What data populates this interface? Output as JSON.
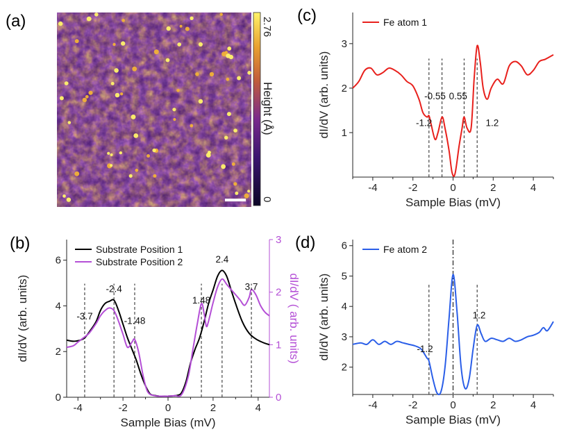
{
  "panel_labels": [
    "(a)",
    "(b)",
    "(c)",
    "(d)"
  ],
  "image_panel": {
    "colorbar_max": "2.76",
    "colorbar_min": "0",
    "colorbar_label": "Height (Å)",
    "colors": [
      "#0c0626",
      "#3b1570",
      "#7a2a8c",
      "#c25d3a",
      "#e8a030",
      "#fff36a"
    ]
  },
  "chart_data": [
    {
      "id": "b",
      "type": "line",
      "xlabel": "Sample Bias (mV)",
      "ylabel": "dI/dV (arb. units)",
      "ylabel_right": "dI/dV ( arb. units)",
      "xlim": [
        -4.5,
        4.5
      ],
      "ylim": [
        0,
        6.9
      ],
      "ylim_right": [
        0,
        3
      ],
      "xticks": [
        -4,
        -2,
        0,
        2,
        4
      ],
      "yticks": [
        0,
        2,
        4,
        6
      ],
      "yticks_right": [
        0,
        1,
        2,
        3
      ],
      "legend_position": "top-left",
      "series": [
        {
          "name": "Substrate Position 1",
          "color": "#000000",
          "axis": "left",
          "x": [
            -4.5,
            -4.2,
            -3.9,
            -3.7,
            -3.5,
            -3.2,
            -3.0,
            -2.8,
            -2.6,
            -2.4,
            -2.2,
            -2.0,
            -1.8,
            -1.6,
            -1.4,
            -1.2,
            -1.0,
            -0.8,
            -0.6,
            -0.4,
            0,
            0.4,
            0.6,
            0.8,
            1.0,
            1.2,
            1.4,
            1.6,
            1.8,
            2.0,
            2.2,
            2.4,
            2.6,
            2.8,
            3.0,
            3.3,
            3.6,
            3.9,
            4.2,
            4.5
          ],
          "y": [
            2.5,
            2.45,
            2.5,
            2.6,
            2.85,
            3.3,
            3.8,
            4.1,
            4.2,
            4.25,
            3.8,
            3.2,
            2.6,
            2.1,
            1.6,
            1.0,
            0.5,
            0.15,
            0.08,
            0.05,
            0.05,
            0.08,
            0.2,
            0.7,
            1.5,
            2.1,
            2.6,
            3.3,
            4.1,
            4.7,
            5.3,
            5.55,
            5.3,
            4.7,
            4.1,
            3.3,
            2.8,
            2.55,
            2.4,
            2.3
          ]
        },
        {
          "name": "Substrate Position 2",
          "color": "#b44fd6",
          "axis": "right",
          "x": [
            -4.5,
            -4.2,
            -4.0,
            -3.7,
            -3.5,
            -3.2,
            -3.0,
            -2.8,
            -2.6,
            -2.4,
            -2.2,
            -2.0,
            -1.8,
            -1.6,
            -1.48,
            -1.3,
            -1.1,
            -0.9,
            -0.6,
            -0.3,
            0,
            0.3,
            0.6,
            0.9,
            1.1,
            1.3,
            1.48,
            1.6,
            1.7,
            1.8,
            2.0,
            2.2,
            2.4,
            2.6,
            2.8,
            3.0,
            3.2,
            3.4,
            3.6,
            3.7,
            3.9,
            4.1,
            4.3,
            4.5
          ],
          "y": [
            0.95,
            0.98,
            1.05,
            1.15,
            1.22,
            1.4,
            1.55,
            1.65,
            1.7,
            1.65,
            1.45,
            1.2,
            0.95,
            1.05,
            1.1,
            0.85,
            0.4,
            0.1,
            0.03,
            0.02,
            0.02,
            0.03,
            0.05,
            0.4,
            0.9,
            1.4,
            1.78,
            1.6,
            1.35,
            1.45,
            1.8,
            2.1,
            2.25,
            2.15,
            2.05,
            1.95,
            1.85,
            1.75,
            1.9,
            2.05,
            1.95,
            1.75,
            1.62,
            1.55
          ]
        }
      ],
      "annotations": [
        {
          "text": "-3.7",
          "x": -3.7,
          "y": 3.4
        },
        {
          "text": "-2.4",
          "x": -2.4,
          "y": 4.6
        },
        {
          "text": "-1.48",
          "x": -1.48,
          "y": 3.2
        },
        {
          "text": "1.48",
          "x": 1.48,
          "y": 4.1
        },
        {
          "text": "2.4",
          "x": 2.4,
          "y": 5.9
        },
        {
          "text": "3.7",
          "x": 3.7,
          "y": 4.7
        }
      ],
      "vlines": [
        -3.7,
        -2.4,
        -1.48,
        1.48,
        2.4,
        3.7
      ]
    },
    {
      "id": "c",
      "type": "line",
      "xlabel": "Sample Bias (mV)",
      "ylabel": "dI/dV (arb. units)",
      "xlim": [
        -5,
        5
      ],
      "ylim": [
        0,
        3.7
      ],
      "xticks": [
        -4,
        -2,
        0,
        2,
        4
      ],
      "yticks": [
        1,
        2,
        3
      ],
      "legend_position": "top-left",
      "series": [
        {
          "name": "Fe atom 1",
          "color": "#e8201c",
          "x": [
            -5,
            -4.7,
            -4.4,
            -4.1,
            -3.8,
            -3.5,
            -3.2,
            -2.9,
            -2.6,
            -2.3,
            -2.0,
            -1.7,
            -1.5,
            -1.3,
            -1.2,
            -1.1,
            -0.9,
            -0.75,
            -0.55,
            -0.4,
            -0.2,
            -0.05,
            0.1,
            0.3,
            0.45,
            0.55,
            0.7,
            0.9,
            1.05,
            1.2,
            1.35,
            1.5,
            1.7,
            1.9,
            2.2,
            2.5,
            2.8,
            3.1,
            3.4,
            3.7,
            4.0,
            4.3,
            4.6,
            5.0
          ],
          "y": [
            2.0,
            2.15,
            2.4,
            2.45,
            2.3,
            2.35,
            2.45,
            2.4,
            2.3,
            2.15,
            2.05,
            1.75,
            1.45,
            1.35,
            1.38,
            1.2,
            0.85,
            1.0,
            1.35,
            1.1,
            0.6,
            0.1,
            0.08,
            0.7,
            1.1,
            1.35,
            1.1,
            1.1,
            2.2,
            2.95,
            2.6,
            2.0,
            1.75,
            2.0,
            2.2,
            2.1,
            2.5,
            2.6,
            2.5,
            2.3,
            2.4,
            2.6,
            2.65,
            2.75
          ]
        }
      ],
      "annotations": [
        {
          "text": "-1.2",
          "x": -1.45,
          "y": 1.15
        },
        {
          "text": "-0.55",
          "x": -0.9,
          "y": 1.75
        },
        {
          "text": "0.55",
          "x": 0.25,
          "y": 1.75
        },
        {
          "text": "1.2",
          "x": 1.95,
          "y": 1.15
        }
      ],
      "vlines": [
        -1.2,
        -0.55,
        0.55,
        1.2
      ]
    },
    {
      "id": "d",
      "type": "line",
      "xlabel": "Sample Bias (mV)",
      "ylabel": "dI/dV (arb. units)",
      "xlim": [
        -5,
        5
      ],
      "ylim": [
        1.1,
        6.2
      ],
      "xticks": [
        -4,
        -2,
        0,
        2,
        4
      ],
      "yticks": [
        2,
        3,
        4,
        5,
        6
      ],
      "legend_position": "top-left",
      "series": [
        {
          "name": "Fe atom 2",
          "color": "#2a5ee8",
          "x": [
            -5,
            -4.6,
            -4.3,
            -4.0,
            -3.7,
            -3.4,
            -3.1,
            -2.8,
            -2.5,
            -2.2,
            -1.9,
            -1.6,
            -1.3,
            -1.2,
            -1.0,
            -0.8,
            -0.6,
            -0.4,
            -0.2,
            0,
            0.2,
            0.4,
            0.6,
            0.8,
            1.0,
            1.2,
            1.4,
            1.6,
            1.9,
            2.2,
            2.5,
            2.8,
            3.1,
            3.4,
            3.7,
            4.0,
            4.3,
            4.5,
            4.7,
            5.0
          ],
          "y": [
            2.75,
            2.8,
            2.75,
            2.9,
            2.75,
            2.85,
            2.75,
            2.85,
            2.8,
            2.75,
            2.7,
            2.6,
            2.3,
            2.2,
            1.6,
            1.15,
            1.2,
            2.0,
            3.6,
            5.05,
            3.8,
            2.0,
            1.3,
            1.6,
            2.6,
            3.38,
            3.1,
            2.85,
            2.95,
            2.9,
            2.85,
            2.95,
            2.85,
            2.9,
            3.0,
            3.05,
            3.15,
            3.3,
            3.2,
            3.5
          ]
        }
      ],
      "annotations": [
        {
          "text": "-1.2",
          "x": -1.4,
          "y": 2.5
        },
        {
          "text": "1.2",
          "x": 1.3,
          "y": 3.6
        }
      ],
      "vlines": [
        -1.2,
        1.2
      ],
      "center_line": 0
    }
  ]
}
